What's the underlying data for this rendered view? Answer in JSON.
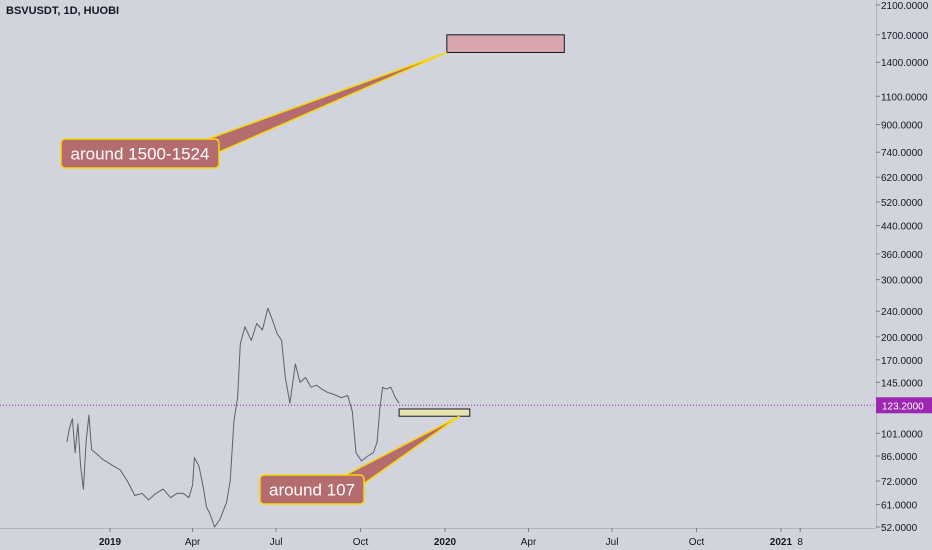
{
  "header": {
    "symbol_text": "BSVUSDT, 1D, HUOBI"
  },
  "chart_data": {
    "type": "line",
    "title": "BSVUSDT, 1D, HUOBI",
    "xlabel": "",
    "ylabel": "",
    "y_scale": "log",
    "ylim": [
      50,
      2200
    ],
    "grid": false,
    "y_ticks": [
      "2100.0000",
      "1700.0000",
      "1400.0000",
      "1100.0000",
      "900.0000",
      "740.0000",
      "620.0000",
      "520.0000",
      "440.0000",
      "360.0000",
      "300.0000",
      "240.0000",
      "200.0000",
      "170.0000",
      "145.0000",
      "101.0000",
      "86.0000",
      "72.0000",
      "61.0000",
      "52.0000"
    ],
    "x_ticks": [
      "2019",
      "Apr",
      "Jul",
      "Oct",
      "2020",
      "Apr",
      "Jul",
      "Oct",
      "2021",
      "8"
    ],
    "x_tick_bold": [
      "2019",
      "2020",
      "2021"
    ],
    "current_price": {
      "value": 123.2,
      "label": "123.2000",
      "color": "#9c27b0"
    },
    "series": [
      {
        "color": "#5d606b",
        "points": [
          [
            "2018-11-15",
            95
          ],
          [
            "2018-11-18",
            105
          ],
          [
            "2018-11-21",
            112
          ],
          [
            "2018-11-24",
            88
          ],
          [
            "2018-11-27",
            108
          ],
          [
            "2018-11-30",
            80
          ],
          [
            "2018-12-03",
            68
          ],
          [
            "2018-12-06",
            95
          ],
          [
            "2018-12-09",
            115
          ],
          [
            "2018-12-12",
            90
          ],
          [
            "2018-12-18",
            87
          ],
          [
            "2018-12-24",
            84
          ],
          [
            "2018-12-30",
            82
          ],
          [
            "2019-01-05",
            80
          ],
          [
            "2019-01-12",
            78
          ],
          [
            "2019-01-20",
            72
          ],
          [
            "2019-01-28",
            65
          ],
          [
            "2019-02-05",
            66
          ],
          [
            "2019-02-12",
            63
          ],
          [
            "2019-02-20",
            66
          ],
          [
            "2019-02-28",
            68
          ],
          [
            "2019-03-08",
            64
          ],
          [
            "2019-03-15",
            66
          ],
          [
            "2019-03-22",
            66
          ],
          [
            "2019-03-28",
            64
          ],
          [
            "2019-04-01",
            70
          ],
          [
            "2019-04-03",
            85
          ],
          [
            "2019-04-08",
            80
          ],
          [
            "2019-04-13",
            68
          ],
          [
            "2019-04-16",
            60
          ],
          [
            "2019-04-20",
            57
          ],
          [
            "2019-04-25",
            52
          ],
          [
            "2019-05-01",
            55
          ],
          [
            "2019-05-08",
            62
          ],
          [
            "2019-05-12",
            72
          ],
          [
            "2019-05-16",
            110
          ],
          [
            "2019-05-20",
            130
          ],
          [
            "2019-05-23",
            190
          ],
          [
            "2019-05-28",
            215
          ],
          [
            "2019-06-04",
            195
          ],
          [
            "2019-06-10",
            220
          ],
          [
            "2019-06-16",
            210
          ],
          [
            "2019-06-22",
            245
          ],
          [
            "2019-06-27",
            225
          ],
          [
            "2019-07-02",
            205
          ],
          [
            "2019-07-07",
            195
          ],
          [
            "2019-07-11",
            150
          ],
          [
            "2019-07-16",
            125
          ],
          [
            "2019-07-22",
            165
          ],
          [
            "2019-07-27",
            145
          ],
          [
            "2019-08-02",
            150
          ],
          [
            "2019-08-08",
            140
          ],
          [
            "2019-08-14",
            142
          ],
          [
            "2019-08-20",
            138
          ],
          [
            "2019-08-26",
            135
          ],
          [
            "2019-09-02",
            133
          ],
          [
            "2019-09-10",
            130
          ],
          [
            "2019-09-17",
            132
          ],
          [
            "2019-09-22",
            118
          ],
          [
            "2019-09-26",
            88
          ],
          [
            "2019-10-02",
            83
          ],
          [
            "2019-10-09",
            86
          ],
          [
            "2019-10-15",
            88
          ],
          [
            "2019-10-19",
            95
          ],
          [
            "2019-10-22",
            120
          ],
          [
            "2019-10-25",
            140
          ],
          [
            "2019-10-29",
            138
          ],
          [
            "2019-11-03",
            140
          ],
          [
            "2019-11-08",
            130
          ],
          [
            "2019-11-12",
            125
          ]
        ]
      }
    ],
    "zones": [
      {
        "label": "around 1500-1524",
        "low": 1500,
        "high": 1700,
        "from": "2020-01-03",
        "to": "2020-05-10",
        "fill": "#d9a6b0",
        "stroke": "#131722"
      },
      {
        "label": "around 107",
        "low": 114,
        "high": 120,
        "from": "2019-11-12",
        "to": "2020-01-28",
        "fill": "#e7e3b1",
        "stroke": "#131722"
      }
    ],
    "callouts": [
      {
        "text": "around 1500-1524",
        "target_zone": 0
      },
      {
        "text": "around 107",
        "target_zone": 1
      }
    ]
  }
}
